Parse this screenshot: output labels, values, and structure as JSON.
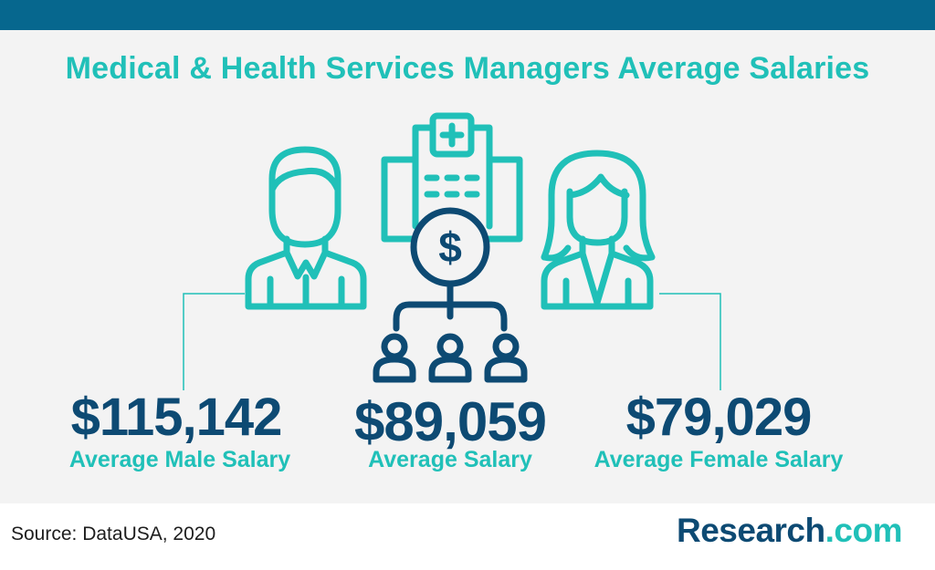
{
  "title": "Medical & Health Services Managers Average Salaries",
  "stats": {
    "male": {
      "amount": "$115,142",
      "label": "Average Male Salary"
    },
    "average": {
      "amount": "$89,059",
      "label": "Average Salary"
    },
    "female": {
      "amount": "$79,029",
      "label": "Average Female Salary"
    }
  },
  "icons": [
    "male-person-icon",
    "hospital-building-icon",
    "dollar-coin-icon",
    "people-group-icon",
    "female-person-icon"
  ],
  "source": "Source: DataUSA, 2020",
  "brand": {
    "name": "Research",
    "tld": ".com"
  },
  "colors": {
    "header": "#06678e",
    "teal": "#20c0b8",
    "navy": "#0d4a73",
    "panel": "#f3f3f3"
  }
}
